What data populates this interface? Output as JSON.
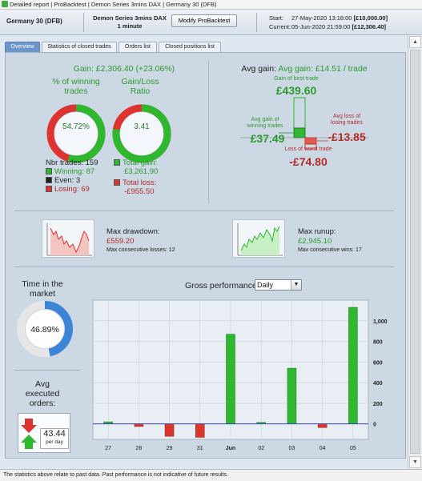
{
  "window": {
    "tabs": [
      "Detailed report",
      "ProBacktest",
      "Demon Series 3mins DAX",
      "Germany 30 (DFB)"
    ]
  },
  "header": {
    "instrument": "Germany 30 (DFB)",
    "strategy_name": "Demon Series 3mins DAX",
    "timeframe": "1 minute",
    "modify_label": "Modify ProBacktest",
    "start_label": "Start:",
    "start_value": "27-May-2020 13:18:00",
    "start_capital": "[£10,000.00]",
    "current_label": "Current:",
    "current_value": "05-Jun-2020 21:59:00",
    "current_capital": "[£12,306.40]"
  },
  "tabs": [
    {
      "label": "Overview",
      "active": true
    },
    {
      "label": "Statistics of closed trades",
      "active": false
    },
    {
      "label": "Orders list",
      "active": false
    },
    {
      "label": "Closed positions list",
      "active": false
    }
  ],
  "gain": {
    "title": "Gain: £2,306.40 (+23.06%)",
    "winning_title_1": "% of winning",
    "winning_title_2": "trades",
    "winning_pct_label": "54.72%",
    "winning_fraction": 0.5472,
    "ratio_title_1": "Gain/Loss",
    "ratio_title_2": "Ratio",
    "ratio_value": "3.41",
    "nbr_trades": "Nbr trades: 159",
    "winning": "Winning: 87",
    "even": "Even: 3",
    "losing": "Losing: 69",
    "total_gain_label": "Total gain:",
    "total_gain": "£3,261.90",
    "total_loss_label": "Total loss:",
    "total_loss": "-£955.50"
  },
  "avg": {
    "title": "Avg gain: £14.51 / trade",
    "best_label": "Gain of best trade",
    "best_value": "£439.60",
    "avg_win_label_1": "Avg gain of",
    "avg_win_label_2": "winning trades",
    "avg_win_value": "£37.49",
    "avg_loss_label_1": "Avg loss of",
    "avg_loss_label_2": "losing trades",
    "avg_loss_value": "-£13.85",
    "worst_label": "Loss of worst trade",
    "worst_value": "-£74.80"
  },
  "drawdown": {
    "title": "Max drawdown:",
    "value": "£559.20",
    "sub": "Max consecutive losses: 12"
  },
  "runup": {
    "title": "Max runup:",
    "value": "£2,945.10",
    "sub": "Max consecutive wins: 17"
  },
  "market": {
    "title_1": "Time in the",
    "title_2": "market",
    "value": "46.89%",
    "fraction": 0.4689
  },
  "orders": {
    "title_1": "Avg",
    "title_2": "executed",
    "title_3": "orders:",
    "value": "43.44",
    "unit": "per day"
  },
  "performance": {
    "title": "Gross performance",
    "period": "Daily"
  },
  "chart_data": {
    "type": "bar",
    "title": "Gross performance",
    "categories": [
      "27",
      "28",
      "29",
      "31",
      "Jun",
      "02",
      "03",
      "04",
      "05"
    ],
    "values": [
      20,
      -25,
      -120,
      -130,
      870,
      15,
      540,
      -35,
      1130
    ],
    "ylim": [
      -150,
      1200
    ],
    "yticks": [
      0,
      200,
      400,
      600,
      800,
      1000
    ],
    "ytick_labels": [
      "0",
      "200",
      "400",
      "600",
      "800",
      "1,000"
    ],
    "grid": true,
    "colors": {
      "positive": "#2fb82f",
      "negative": "#d9362c"
    }
  },
  "footer": {
    "text": "The statistics above relate to past data. Past performance is not indicative of future results."
  }
}
